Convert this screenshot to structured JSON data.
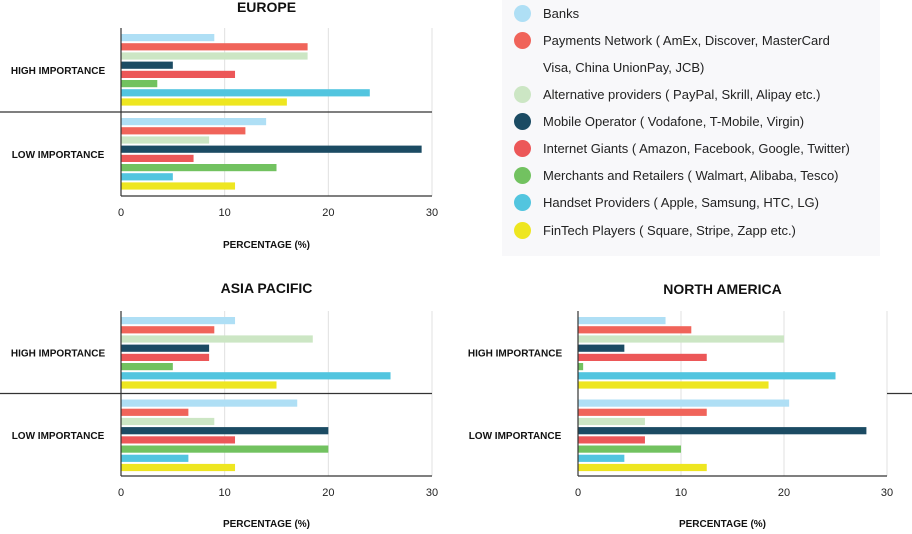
{
  "colors": {
    "banks": "#afdff5",
    "payments": "#f0645a",
    "alternative": "#cce6c4",
    "mobile": "#1b4b63",
    "internet": "#ec5758",
    "merchants": "#72c260",
    "handset": "#52c5df",
    "fintech": "#eee620"
  },
  "legend": [
    {
      "key": "banks",
      "label": "Banks"
    },
    {
      "key": "payments",
      "label": "Payments Network ( AmEx, Discover, MasterCard"
    },
    {
      "key": null,
      "label": "Visa, China UnionPay, JCB)"
    },
    {
      "key": "alternative",
      "label": "Alternative providers ( PayPal, Skrill, Alipay etc.)"
    },
    {
      "key": "mobile",
      "label": "Mobile Operator ( Vodafone, T-Mobile, Virgin)"
    },
    {
      "key": "internet",
      "label": "Internet Giants ( Amazon, Facebook, Google, Twitter)"
    },
    {
      "key": "merchants",
      "label": "Merchants and Retailers ( Walmart, Alibaba, Tesco)"
    },
    {
      "key": "handset",
      "label": "Handset Providers ( Apple, Samsung, HTC, LG)"
    },
    {
      "key": "fintech",
      "label": "FinTech Players ( Square, Stripe, Zapp etc.)"
    }
  ],
  "chart_data": [
    {
      "type": "bar",
      "title": "EUROPE",
      "xlabel": "PERCENTAGE (%)",
      "categories": [
        "HIGH IMPORTANCE",
        "LOW IMPORTANCE"
      ],
      "xlim": [
        0,
        30
      ],
      "ticks": [
        "0",
        "10",
        "20",
        "30"
      ],
      "series": [
        {
          "key": "banks",
          "values": [
            9,
            14
          ]
        },
        {
          "key": "payments",
          "values": [
            18,
            12
          ]
        },
        {
          "key": "alternative",
          "values": [
            18,
            8.5
          ]
        },
        {
          "key": "mobile",
          "values": [
            5,
            29
          ]
        },
        {
          "key": "internet",
          "values": [
            11,
            7
          ]
        },
        {
          "key": "merchants",
          "values": [
            3.5,
            15
          ]
        },
        {
          "key": "handset",
          "values": [
            24,
            5
          ]
        },
        {
          "key": "fintech",
          "values": [
            16,
            11
          ]
        }
      ]
    },
    {
      "type": "bar",
      "title": "ASIA PACIFIC",
      "xlabel": "PERCENTAGE (%)",
      "categories": [
        "HIGH IMPORTANCE",
        "LOW IMPORTANCE"
      ],
      "xlim": [
        0,
        30
      ],
      "ticks": [
        "0",
        "10",
        "20",
        "30"
      ],
      "series": [
        {
          "key": "banks",
          "values": [
            11,
            17
          ]
        },
        {
          "key": "payments",
          "values": [
            9,
            6.5
          ]
        },
        {
          "key": "alternative",
          "values": [
            18.5,
            9
          ]
        },
        {
          "key": "mobile",
          "values": [
            8.5,
            20
          ]
        },
        {
          "key": "internet",
          "values": [
            8.5,
            11
          ]
        },
        {
          "key": "merchants",
          "values": [
            5,
            20
          ]
        },
        {
          "key": "handset",
          "values": [
            26,
            6.5
          ]
        },
        {
          "key": "fintech",
          "values": [
            15,
            11
          ]
        }
      ]
    },
    {
      "type": "bar",
      "title": "NORTH AMERICA",
      "xlabel": "PERCENTAGE (%)",
      "categories": [
        "HIGH IMPORTANCE",
        "LOW IMPORTANCE"
      ],
      "xlim": [
        0,
        30
      ],
      "ticks": [
        "0",
        "10",
        "20",
        "30"
      ],
      "series": [
        {
          "key": "banks",
          "values": [
            8.5,
            20.5
          ]
        },
        {
          "key": "payments",
          "values": [
            11,
            12.5
          ]
        },
        {
          "key": "alternative",
          "values": [
            20,
            6.5
          ]
        },
        {
          "key": "mobile",
          "values": [
            4.5,
            28
          ]
        },
        {
          "key": "internet",
          "values": [
            12.5,
            6.5
          ]
        },
        {
          "key": "merchants",
          "values": [
            0.5,
            10
          ]
        },
        {
          "key": "handset",
          "values": [
            25,
            4.5
          ]
        },
        {
          "key": "fintech",
          "values": [
            18.5,
            12.5
          ]
        }
      ]
    }
  ]
}
